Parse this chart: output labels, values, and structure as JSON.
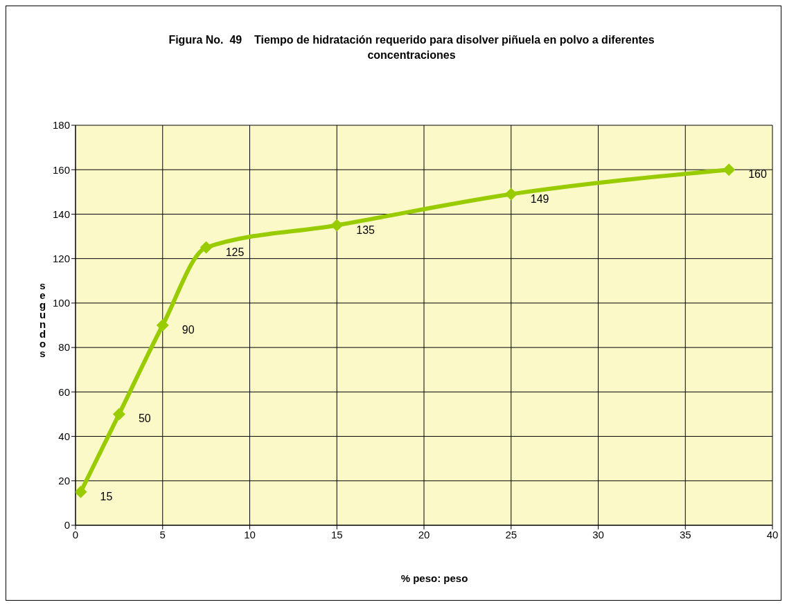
{
  "chart_data": {
    "type": "line",
    "title": "Figura No.  49    Tiempo de hidratación requerido para disolver piñuela en polvo a diferentes concentraciones",
    "xlabel": "% peso: peso",
    "ylabel": "segundos",
    "x": [
      0.3,
      2.5,
      5,
      7.5,
      15,
      25,
      37.5
    ],
    "series": [
      {
        "color": "#99cc00",
        "values": [
          15,
          50,
          90,
          125,
          135,
          149,
          160
        ]
      }
    ],
    "xlim": [
      0,
      40
    ],
    "xticks": [
      0,
      5,
      10,
      15,
      20,
      25,
      30,
      35,
      40
    ],
    "ylim": [
      0,
      180
    ],
    "yticks": [
      0,
      20,
      40,
      60,
      80,
      100,
      120,
      140,
      160,
      180
    ],
    "grid": true,
    "legend": false,
    "marker": "diamond",
    "line_style": "solid",
    "data_labels": true
  }
}
